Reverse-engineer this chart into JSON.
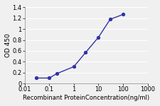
{
  "x": [
    0.03,
    0.1,
    0.2,
    1,
    3,
    10,
    30,
    100
  ],
  "y": [
    0.1,
    0.1,
    0.18,
    0.31,
    0.57,
    0.85,
    1.18,
    1.27
  ],
  "line_color": "#3333aa",
  "marker_color": "#3333aa",
  "marker_style": "o",
  "marker_size": 3,
  "linewidth": 1.0,
  "xlabel": "Recombinant ProteinConcentration(ng/ml)",
  "ylabel": "OD 450",
  "xlim": [
    0.01,
    1000
  ],
  "ylim": [
    0,
    1.4
  ],
  "yticks": [
    0,
    0.2,
    0.4,
    0.6,
    0.8,
    1.0,
    1.2,
    1.4
  ],
  "ytick_labels": [
    "0",
    "0.2",
    "0.4",
    "0.6",
    "0.8",
    "1",
    "1.2",
    "1.4"
  ],
  "xticks": [
    0.01,
    0.1,
    1,
    10,
    100,
    1000
  ],
  "xtick_labels": [
    "0.01",
    "0.1",
    "1",
    "10",
    "100",
    "1000"
  ],
  "background_color": "#f0f0f0",
  "fig_color": "#f0f0f0",
  "grid_color": "#ffffff",
  "xlabel_fontsize": 6.0,
  "ylabel_fontsize": 6.5,
  "tick_fontsize": 6.0
}
